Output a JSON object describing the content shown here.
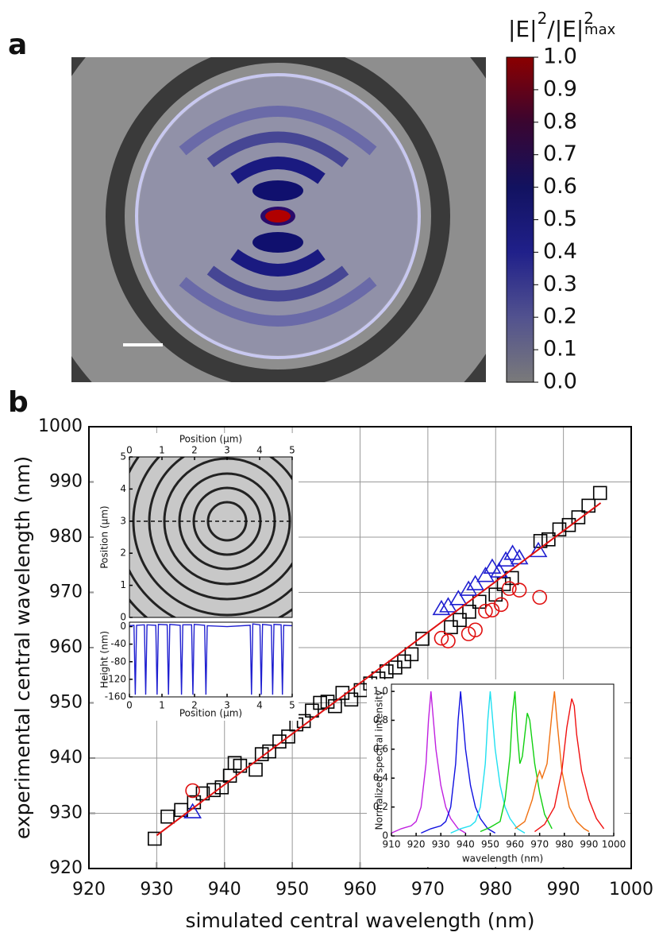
{
  "chart_data": [
    {
      "type": "colorbar",
      "panel_label": "a",
      "label_parts": [
        "|E|",
        "2",
        "/|E|",
        "2",
        "max"
      ],
      "ylim": [
        0,
        1
      ],
      "yticks": [
        {
          "value": 0,
          "label": "0.0"
        },
        0.1,
        0.2,
        0.3,
        0.4,
        0.5,
        0.6,
        0.7,
        0.8,
        0.9,
        {
          "value": 1,
          "label": "1.0"
        }
      ],
      "colors": [
        "#7a7a7a",
        "#52528f",
        "#20208a",
        "#121260",
        "#3a0530",
        "#8b0000"
      ]
    },
    {
      "type": "scatter",
      "panel_label": "b",
      "xlabel": "simulated central wavelength (nm)",
      "ylabel": "experimental central wavelength (nm)",
      "xlim": [
        920,
        1000
      ],
      "xticks": [
        920,
        930,
        940,
        950,
        960,
        970,
        980,
        990,
        1000
      ],
      "ylim": [
        920,
        1000
      ],
      "yticks": [
        920,
        930,
        940,
        950,
        960,
        970,
        980,
        990,
        1000
      ],
      "grid": true,
      "series": [
        {
          "marker": "square",
          "color": "#000000",
          "x": [
            929.7,
            931.6,
            933.6,
            935.5,
            936.8,
            938.4,
            939.6,
            940.8,
            941.5,
            942.3,
            944.6,
            945.5,
            946.6,
            948.1,
            949.4,
            950.6,
            951.7,
            952.9,
            954.1,
            955.2,
            956.3,
            957.4,
            958.7,
            960.1,
            961.5,
            962.7,
            963.9,
            965.2,
            966.5,
            967.6,
            969.2,
            973.4,
            974.7,
            976.1,
            977.6,
            980.0,
            981.2,
            982.4,
            986.6,
            987.8,
            989.4,
            990.8,
            992.2,
            993.7,
            995.4
          ],
          "values": [
            925.4,
            929.4,
            930.6,
            932.0,
            933.6,
            934.2,
            934.7,
            936.8,
            939.1,
            938.6,
            937.9,
            940.7,
            941.2,
            943.0,
            943.9,
            946.1,
            946.7,
            948.6,
            950.0,
            950.2,
            949.4,
            951.8,
            950.6,
            952.3,
            953.5,
            954.4,
            955.7,
            956.4,
            957.5,
            958.8,
            961.6,
            963.7,
            965.0,
            966.5,
            968.3,
            969.6,
            971.5,
            972.6,
            979.3,
            979.6,
            981.4,
            982.2,
            983.6,
            985.7,
            988.0
          ]
        },
        {
          "marker": "triangle",
          "color": "#1f1fd0",
          "x": [
            935.3,
            972.0,
            973.0,
            974.5,
            976.0,
            977.0,
            978.5,
            979.5,
            980.5,
            981.5,
            982.5,
            983.5,
            986.3
          ],
          "values": [
            930.2,
            967.0,
            967.5,
            968.8,
            970.5,
            971.5,
            973.0,
            974.5,
            973.8,
            975.8,
            977.0,
            976.2,
            977.5
          ]
        },
        {
          "marker": "circle",
          "color": "#e01010",
          "x": [
            935.3,
            972.0,
            973.0,
            976.0,
            977.0,
            978.5,
            979.5,
            980.8,
            982.0,
            983.5,
            986.5
          ],
          "values": [
            934.1,
            961.7,
            961.2,
            962.5,
            963.2,
            966.6,
            966.8,
            967.8,
            970.7,
            970.4,
            969.1
          ]
        },
        {
          "marker": "line",
          "color": "#e01010",
          "x": [
            930,
            995.5
          ],
          "values": [
            926,
            986.2
          ]
        }
      ]
    },
    {
      "type": "image",
      "xlabel": "Position (μm)",
      "ylabel": "Position (μm)",
      "xlim": [
        0,
        5
      ],
      "xticks": [
        0,
        1,
        2,
        3,
        4,
        5
      ],
      "ylim": [
        0,
        5
      ],
      "yticks": [
        0,
        1,
        2,
        3,
        4,
        5
      ]
    },
    {
      "type": "line",
      "xlabel": "Position (μm)",
      "ylabel": "Height (nm)",
      "xlim": [
        0,
        5
      ],
      "xticks": [
        0,
        1,
        2,
        3,
        4,
        5
      ],
      "ylim": [
        -160,
        10
      ],
      "yticks": [
        0,
        -40,
        -80,
        -120,
        -160
      ],
      "series": [
        {
          "color": "#1f1fd0",
          "x": [
            0,
            0.14,
            0.18,
            0.22,
            0.46,
            0.5,
            0.54,
            0.81,
            0.85,
            0.89,
            1.16,
            1.2,
            1.24,
            1.56,
            1.6,
            1.64,
            1.91,
            1.95,
            1.99,
            2.31,
            2.35,
            2.39,
            3.0,
            3.71,
            3.75,
            3.79,
            4.01,
            4.05,
            4.09,
            4.36,
            4.4,
            4.44,
            4.66,
            4.7,
            4.74,
            5.0
          ],
          "values": [
            2,
            3,
            -155,
            3,
            4,
            -155,
            4,
            3,
            -155,
            5,
            4,
            -155,
            5,
            3,
            -155,
            4,
            4,
            -155,
            5,
            3,
            -155,
            2,
            0,
            3,
            -155,
            6,
            4,
            -155,
            5,
            3,
            -155,
            5,
            4,
            -155,
            3,
            2
          ]
        }
      ]
    },
    {
      "type": "line",
      "xlabel": "wavelength (nm)",
      "ylabel": "Normalized spectral intensity",
      "xlim": [
        910,
        1000
      ],
      "xticks": [
        910,
        920,
        930,
        940,
        950,
        960,
        970,
        980,
        990,
        1000
      ],
      "ylim": [
        0,
        1.05
      ],
      "yticks": [
        0,
        0.2,
        0.4,
        0.6,
        0.8,
        {
          "value": 1,
          "label": "1.0"
        }
      ],
      "series": [
        {
          "color": "#c020e0",
          "x": [
            910,
            914,
            918,
            920,
            922,
            924,
            925,
            926,
            927,
            928,
            930,
            932,
            934,
            937,
            940
          ],
          "values": [
            0.02,
            0.05,
            0.07,
            0.1,
            0.2,
            0.5,
            0.8,
            1.0,
            0.8,
            0.6,
            0.35,
            0.2,
            0.12,
            0.05,
            0.02
          ]
        },
        {
          "color": "#1010e0",
          "x": [
            922,
            926,
            930,
            932,
            934,
            936,
            937,
            938,
            939,
            940,
            942,
            944,
            946,
            949,
            952
          ],
          "values": [
            0.02,
            0.05,
            0.07,
            0.1,
            0.2,
            0.5,
            0.8,
            1.0,
            0.8,
            0.6,
            0.35,
            0.2,
            0.12,
            0.05,
            0.02
          ]
        },
        {
          "color": "#20e0f0",
          "x": [
            934,
            938,
            942,
            944,
            946,
            948,
            949,
            950,
            951,
            952,
            954,
            956,
            958,
            961,
            964
          ],
          "values": [
            0.02,
            0.05,
            0.07,
            0.1,
            0.2,
            0.5,
            0.8,
            1.0,
            0.8,
            0.6,
            0.35,
            0.2,
            0.12,
            0.05,
            0.02
          ]
        },
        {
          "color": "#10d010",
          "x": [
            946,
            950,
            954,
            956,
            958,
            959,
            960,
            961,
            962,
            963,
            964,
            965,
            966,
            968,
            970,
            972,
            975
          ],
          "values": [
            0.03,
            0.06,
            0.1,
            0.25,
            0.55,
            0.85,
            1.0,
            0.7,
            0.5,
            0.55,
            0.7,
            0.85,
            0.8,
            0.5,
            0.3,
            0.15,
            0.05
          ]
        },
        {
          "color": "#f07010",
          "x": [
            960,
            964,
            967,
            969,
            970,
            971,
            973,
            975,
            976,
            977,
            979,
            982,
            985,
            988,
            990
          ],
          "values": [
            0.05,
            0.1,
            0.25,
            0.4,
            0.45,
            0.4,
            0.5,
            0.85,
            1.0,
            0.8,
            0.45,
            0.2,
            0.1,
            0.05,
            0.03
          ]
        },
        {
          "color": "#f01010",
          "x": [
            968,
            972,
            976,
            979,
            981,
            983,
            984,
            985,
            987,
            990,
            993,
            996
          ],
          "values": [
            0.03,
            0.08,
            0.2,
            0.45,
            0.75,
            0.95,
            0.9,
            0.7,
            0.45,
            0.25,
            0.12,
            0.05
          ]
        }
      ]
    }
  ]
}
